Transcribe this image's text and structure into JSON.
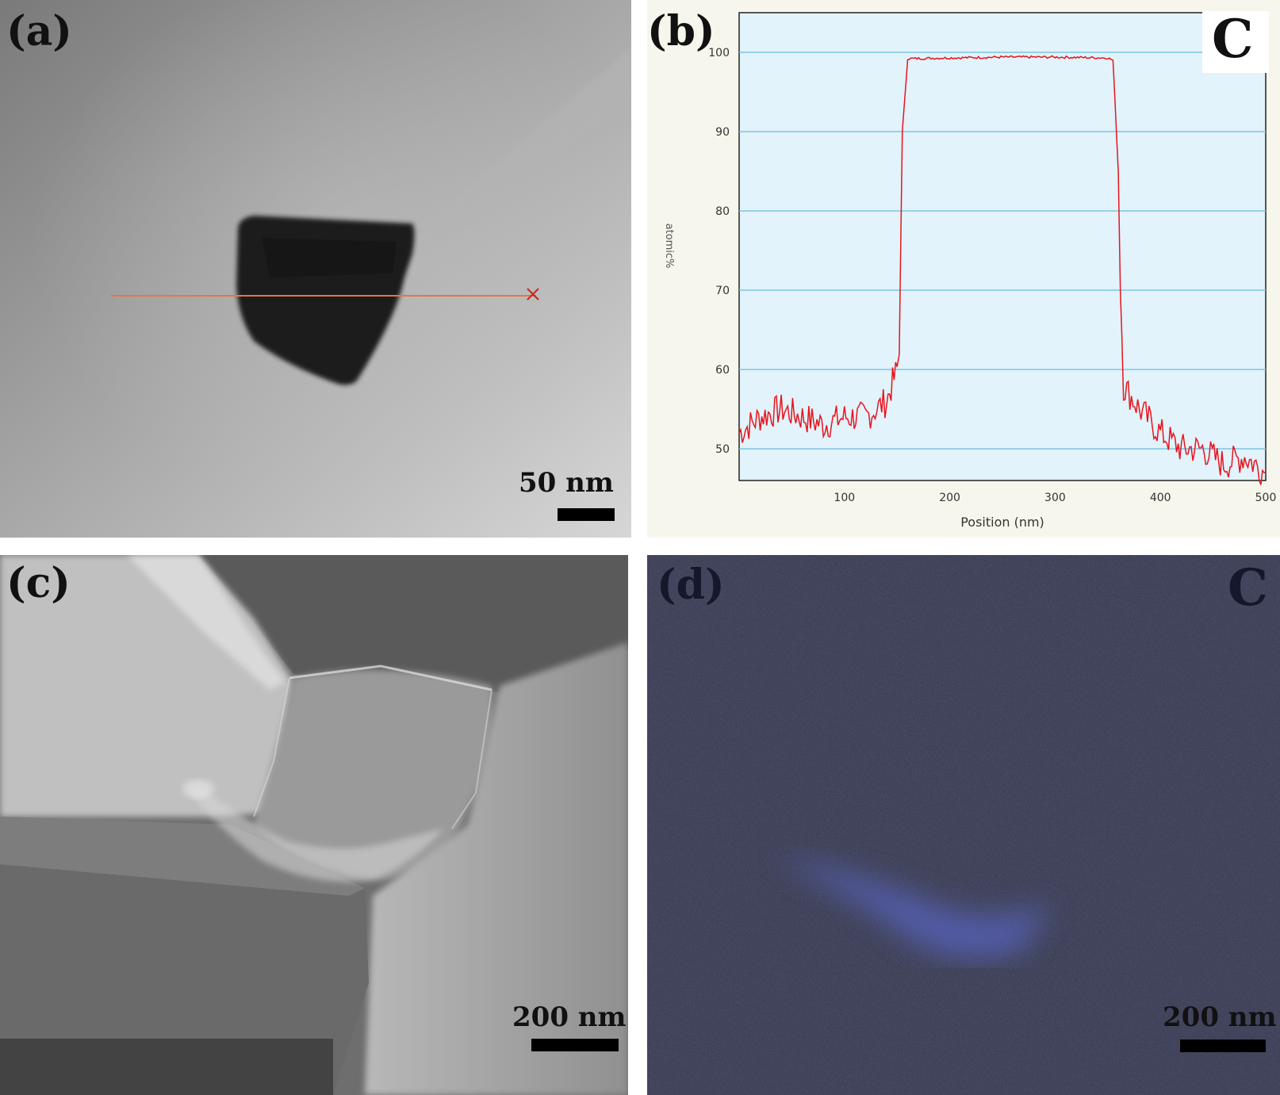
{
  "panels": {
    "a": {
      "label": "(a)",
      "scale_text": "50 nm"
    },
    "b": {
      "label": "(b)",
      "element": "C"
    },
    "c": {
      "label": "(c)",
      "scale_text": "200 nm"
    },
    "d": {
      "label": "(d)",
      "element": "C",
      "scale_text": "200 nm"
    }
  },
  "chart_data": {
    "type": "line",
    "xlabel": "Position (nm)",
    "ylabel": "atomic%",
    "xlim": [
      0,
      500
    ],
    "ylim": [
      46,
      105
    ],
    "xticks": [
      100,
      200,
      300,
      400,
      500
    ],
    "yticks": [
      50,
      60,
      70,
      80,
      90,
      100
    ],
    "grid": "horizontal",
    "colors": {
      "line": "#e8141e",
      "background": "#e2f3fb",
      "grid": "#7cc4e4"
    },
    "series": [
      {
        "x": [
          0,
          20,
          40,
          60,
          80,
          100,
          120,
          140,
          150,
          152,
          155,
          160,
          200,
          250,
          300,
          350,
          355,
          360,
          362,
          365,
          380,
          400,
          420,
          440,
          460,
          480,
          500
        ],
        "values": [
          52,
          54,
          55,
          54,
          53,
          54,
          54,
          56,
          60,
          62,
          90,
          99.2,
          99.3,
          99.4,
          99.4,
          99.3,
          99,
          85,
          70,
          58,
          55,
          52,
          50,
          50,
          48,
          49,
          47
        ]
      }
    ]
  }
}
